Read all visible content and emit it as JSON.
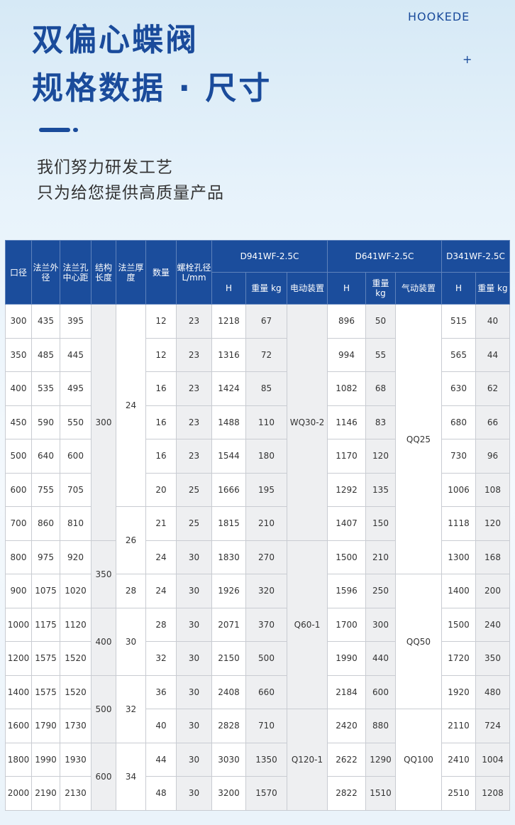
{
  "header": {
    "brand": "HOOKEDE",
    "title_line1": "双偏心蝶阀",
    "title_line2": "规格数据 · 尺寸",
    "plus": "+",
    "subtitle_line1": "我们努力研发工艺",
    "subtitle_line2": "只为给您提供高质量产品"
  },
  "table": {
    "columns": [
      "口径",
      "法兰外径",
      "法兰孔中心距",
      "结构长度",
      "法兰厚度",
      "数量",
      "螺栓孔径 L/mm"
    ],
    "groups": [
      "D941WF-2.5C",
      "D641WF-2.5C",
      "D341WF-2.5C"
    ],
    "subcolumns": [
      "H",
      "重量 kg",
      "电动装置",
      "H",
      "重量 kg",
      "气动装置",
      "H",
      "重量 kg"
    ],
    "structure_length": [
      "300",
      "350",
      "400",
      "500",
      "600"
    ],
    "flange_thickness": [
      "24",
      "26",
      "28",
      "30",
      "32",
      "34"
    ],
    "electric_actuator": [
      "WQ30-2",
      "Q60-1",
      "Q120-1"
    ],
    "pneumatic_actuator": [
      "QQ25",
      "QQ50",
      "QQ100"
    ],
    "rows": [
      [
        "300",
        "435",
        "395",
        "12",
        "23",
        "1218",
        "67",
        "896",
        "50",
        "515",
        "40"
      ],
      [
        "350",
        "485",
        "445",
        "12",
        "23",
        "1316",
        "72",
        "994",
        "55",
        "565",
        "44"
      ],
      [
        "400",
        "535",
        "495",
        "16",
        "23",
        "1424",
        "85",
        "1082",
        "68",
        "630",
        "62"
      ],
      [
        "450",
        "590",
        "550",
        "16",
        "23",
        "1488",
        "110",
        "1146",
        "83",
        "680",
        "66"
      ],
      [
        "500",
        "640",
        "600",
        "16",
        "23",
        "1544",
        "180",
        "1170",
        "120",
        "730",
        "96"
      ],
      [
        "600",
        "755",
        "705",
        "20",
        "25",
        "1666",
        "195",
        "1292",
        "135",
        "1006",
        "108"
      ],
      [
        "700",
        "860",
        "810",
        "21",
        "25",
        "1815",
        "210",
        "1407",
        "150",
        "1118",
        "120"
      ],
      [
        "800",
        "975",
        "920",
        "24",
        "30",
        "1830",
        "270",
        "1500",
        "210",
        "1300",
        "168"
      ],
      [
        "900",
        "1075",
        "1020",
        "24",
        "30",
        "1926",
        "320",
        "1596",
        "250",
        "1400",
        "200"
      ],
      [
        "1000",
        "1175",
        "1120",
        "28",
        "30",
        "2071",
        "370",
        "1700",
        "300",
        "1500",
        "240"
      ],
      [
        "1200",
        "1575",
        "1520",
        "32",
        "30",
        "2150",
        "500",
        "1990",
        "440",
        "1720",
        "350"
      ],
      [
        "1400",
        "1575",
        "1520",
        "36",
        "30",
        "2408",
        "660",
        "2184",
        "600",
        "1920",
        "480"
      ],
      [
        "1600",
        "1790",
        "1730",
        "40",
        "30",
        "2828",
        "710",
        "2420",
        "880",
        "2110",
        "724"
      ],
      [
        "1800",
        "1990",
        "1930",
        "44",
        "30",
        "3030",
        "1350",
        "2622",
        "1290",
        "2410",
        "1004"
      ],
      [
        "2000",
        "2190",
        "2130",
        "48",
        "30",
        "3200",
        "1570",
        "2822",
        "1510",
        "2510",
        "1208"
      ]
    ]
  }
}
